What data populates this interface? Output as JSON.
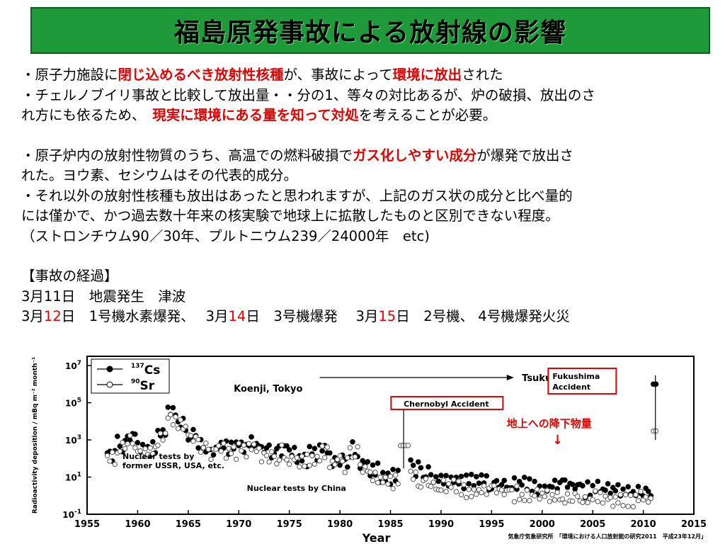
{
  "title": "福島原発事故による放射線の影響",
  "lines": [
    {
      "segments": [
        {
          "t": "・原子力施設に"
        },
        {
          "t": "閉じ込めるべき放射性核種",
          "red": true
        },
        {
          "t": "が、事故によって"
        },
        {
          "t": "環境に放出",
          "red": true
        },
        {
          "t": "された"
        }
      ]
    },
    {
      "segments": [
        {
          "t": "・チェルノブイリ事故と比較して放出量・・分の1、等々の対比あるが、炉の破損、放出のさ"
        }
      ]
    },
    {
      "segments": [
        {
          "t": "れ方にも依るため、　"
        },
        {
          "t": "現実に環境にある量を知って対処",
          "red": true
        },
        {
          "t": "を考えることが必要。"
        }
      ]
    },
    {
      "gap": true
    },
    {
      "segments": [
        {
          "t": "・原子炉内の放射性物質のうち、高温での燃料破損で"
        },
        {
          "t": "ガス化しやすい成分",
          "red": true
        },
        {
          "t": "が爆発で放出さ"
        }
      ]
    },
    {
      "segments": [
        {
          "t": "れた。ヨウ素、セシウムはその代表的成分。"
        }
      ]
    },
    {
      "segments": [
        {
          "t": "・それ以外の放射性核種も放出はあったと思われますが、上記のガス状の成分と比べ量的"
        }
      ]
    },
    {
      "segments": [
        {
          "t": "には僅かで、かつ過去数十年来の核実験で地球上に拡散したものと区別できない程度。"
        }
      ]
    },
    {
      "segments": [
        {
          "t": "（ストロンチウム90／30年、プルトニウム239／24000年　etc)"
        }
      ]
    },
    {
      "gap": true
    },
    {
      "segments": [
        {
          "t": "【事故の経過】"
        }
      ]
    },
    {
      "segments": [
        {
          "t": "3月11日　地震発生　津波"
        }
      ]
    },
    {
      "segments": [
        {
          "t": "3月"
        },
        {
          "t": "12",
          "redplain": true
        },
        {
          "t": "日　1号機水素爆発、　 3月"
        },
        {
          "t": "14",
          "redplain": true
        },
        {
          "t": "日　3号機爆発　 3月"
        },
        {
          "t": "15",
          "redplain": true
        },
        {
          "t": "日　2号機、 4号機爆発火災"
        }
      ]
    }
  ],
  "chart_data": {
    "type": "scatter",
    "xlabel": "Year",
    "ylabel": "Radioactivity deposition / mBq m⁻² month⁻¹",
    "xlim": [
      1955,
      2015
    ],
    "ylim_log10": [
      -1,
      7.5
    ],
    "xticks": [
      "1955",
      "1960",
      "1965",
      "1970",
      "1975",
      "1980",
      "1985",
      "1990",
      "1995",
      "2000",
      "2005",
      "2010",
      "2015"
    ],
    "yticks": [
      {
        "base": "10",
        "exp": "-1"
      },
      {
        "base": "10",
        "exp": "1"
      },
      {
        "base": "10",
        "exp": "3"
      },
      {
        "base": "10",
        "exp": "5"
      },
      {
        "base": "10",
        "exp": "7"
      }
    ],
    "legend": [
      {
        "sup": "137",
        "name": "Cs",
        "marker": "filled"
      },
      {
        "sup": "90",
        "name": "Sr",
        "marker": "open"
      }
    ],
    "series": [
      {
        "name": "Cs",
        "marker": "filled",
        "points": [
          [
            1957,
            200
          ],
          [
            1958,
            600
          ],
          [
            1959,
            1500
          ],
          [
            1960,
            400
          ],
          [
            1961,
            300
          ],
          [
            1962,
            2000
          ],
          [
            1963,
            30000
          ],
          [
            1964,
            8000
          ],
          [
            1965,
            2000
          ],
          [
            1966,
            600
          ],
          [
            1967,
            300
          ],
          [
            1968,
            400
          ],
          [
            1969,
            400
          ],
          [
            1970,
            500
          ],
          [
            1971,
            600
          ],
          [
            1972,
            300
          ],
          [
            1973,
            200
          ],
          [
            1974,
            300
          ],
          [
            1975,
            150
          ],
          [
            1976,
            100
          ],
          [
            1977,
            200
          ],
          [
            1978,
            300
          ],
          [
            1979,
            100
          ],
          [
            1980,
            80
          ],
          [
            1981,
            300
          ],
          [
            1982,
            60
          ],
          [
            1983,
            20
          ],
          [
            1984,
            15
          ],
          [
            1985,
            10
          ],
          [
            1986,
            120000
          ],
          [
            1987,
            30
          ],
          [
            1988,
            15
          ],
          [
            1989,
            10
          ],
          [
            1990,
            8
          ],
          [
            1991,
            8
          ],
          [
            1992,
            6
          ],
          [
            1993,
            5
          ],
          [
            1994,
            5
          ],
          [
            1995,
            4
          ],
          [
            1996,
            5
          ],
          [
            1997,
            4
          ],
          [
            1998,
            4
          ],
          [
            1999,
            3
          ],
          [
            2000,
            3
          ],
          [
            2001,
            4
          ],
          [
            2002,
            3
          ],
          [
            2003,
            3
          ],
          [
            2004,
            2
          ],
          [
            2005,
            3
          ],
          [
            2006,
            2
          ],
          [
            2007,
            2
          ],
          [
            2008,
            2
          ],
          [
            2009,
            2
          ],
          [
            2010,
            1.5
          ],
          [
            2011,
            1000000
          ]
        ]
      },
      {
        "name": "Sr",
        "marker": "open",
        "points": [
          [
            1957,
            120
          ],
          [
            1958,
            400
          ],
          [
            1959,
            1000
          ],
          [
            1960,
            250
          ],
          [
            1961,
            200
          ],
          [
            1962,
            1200
          ],
          [
            1963,
            15000
          ],
          [
            1964,
            5000
          ],
          [
            1965,
            1200
          ],
          [
            1966,
            400
          ],
          [
            1967,
            200
          ],
          [
            1968,
            250
          ],
          [
            1969,
            250
          ],
          [
            1970,
            300
          ],
          [
            1971,
            350
          ],
          [
            1972,
            180
          ],
          [
            1973,
            120
          ],
          [
            1974,
            200
          ],
          [
            1975,
            100
          ],
          [
            1976,
            60
          ],
          [
            1977,
            120
          ],
          [
            1978,
            180
          ],
          [
            1979,
            60
          ],
          [
            1980,
            50
          ],
          [
            1981,
            180
          ],
          [
            1982,
            35
          ],
          [
            1983,
            12
          ],
          [
            1984,
            8
          ],
          [
            1985,
            6
          ],
          [
            1986,
            500
          ],
          [
            1987,
            8
          ],
          [
            1988,
            5
          ],
          [
            1989,
            4
          ],
          [
            1990,
            3
          ],
          [
            1991,
            3
          ],
          [
            1992,
            2
          ],
          [
            1993,
            2
          ],
          [
            1994,
            2
          ],
          [
            1995,
            1.5
          ],
          [
            1996,
            1.5
          ],
          [
            1997,
            1.2
          ],
          [
            1998,
            1
          ],
          [
            1999,
            1
          ],
          [
            2000,
            1
          ],
          [
            2001,
            1
          ],
          [
            2002,
            0.8
          ],
          [
            2003,
            0.8
          ],
          [
            2004,
            0.8
          ],
          [
            2005,
            0.7
          ],
          [
            2006,
            0.7
          ],
          [
            2007,
            0.6
          ],
          [
            2008,
            0.6
          ],
          [
            2009,
            0.6
          ],
          [
            2010,
            0.5
          ],
          [
            2011,
            3000
          ]
        ]
      }
    ],
    "annotations": {
      "koenji": "Koenji, Tokyo",
      "tsukuba": "Tsukuba",
      "chernobyl": "Chernobyl Accident",
      "fukushima_1": "Fukushima",
      "fukushima_2": "Accident",
      "ussr_1": "Nuclear tests by",
      "ussr_2": "former USSR, USA, etc.",
      "china": "Nuclear tests by China",
      "ground_1": "地上への降下物量",
      "ground_2": "↓",
      "source": "気象庁気象研究所　「環境における人口放射能の研究2011　平成23年12月」"
    },
    "colors": {
      "accent_red": "#e00000",
      "chernobyl_box": "#e00000",
      "fukushima_box": "#e00000"
    }
  }
}
